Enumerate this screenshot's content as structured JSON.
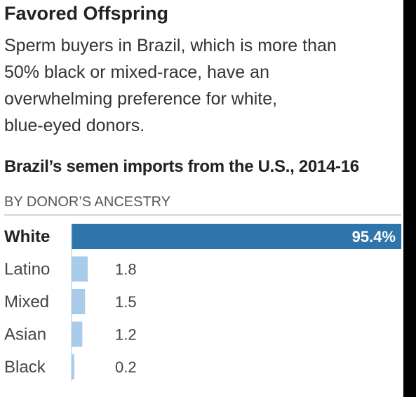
{
  "header": {
    "title": "Favored Offspring",
    "subtitle_lines": [
      "Sperm buyers in Brazil, which is more than",
      "50% black or mixed-race, have an",
      "overwhelming preference for white,",
      "blue-eyed donors."
    ]
  },
  "chart_data": {
    "type": "bar",
    "orientation": "horizontal",
    "title": "Brazil’s semen imports from the U.S., 2014-16",
    "subtitle": "BY DONOR’S ANCESTRY",
    "categories": [
      "White",
      "Latino",
      "Mixed",
      "Asian",
      "Black"
    ],
    "values": [
      95.4,
      1.8,
      1.5,
      1.2,
      0.2
    ],
    "value_labels": [
      "95.4%",
      "1.8",
      "1.5",
      "1.2",
      "0.2"
    ],
    "unit": "%",
    "xlim": [
      0,
      95.4
    ],
    "grid": false,
    "legend": "none",
    "colors": {
      "highlight": "#2e75ac",
      "other": "#a9cbea"
    }
  }
}
